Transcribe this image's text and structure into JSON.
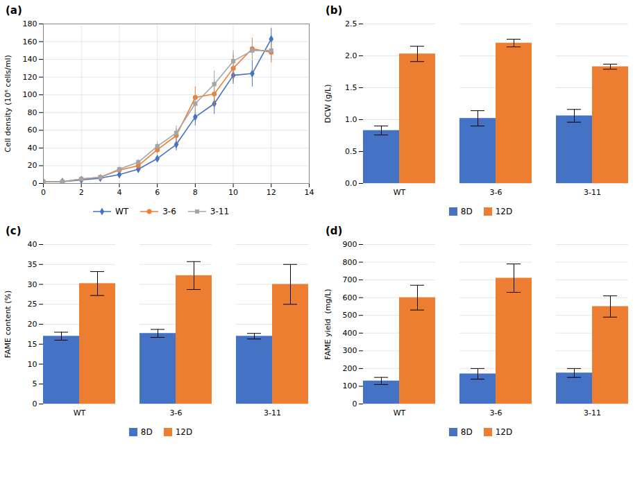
{
  "chart_data": [
    {
      "type": "line",
      "title": "(a)",
      "x": [
        0,
        1,
        2,
        3,
        4,
        5,
        6,
        7,
        8,
        9,
        10,
        11,
        12
      ],
      "series": [
        {
          "name": "WT",
          "color": "#4472C4",
          "marker": "diamond",
          "values": [
            2,
            2,
            4,
            6,
            10,
            16,
            28,
            44,
            75,
            90,
            122,
            124,
            163
          ],
          "errors": [
            0,
            0,
            0.5,
            1,
            2,
            2,
            4,
            7,
            10,
            12,
            10,
            15,
            12
          ]
        },
        {
          "name": "3-6",
          "color": "#ED7D31",
          "marker": "circle",
          "values": [
            2,
            2,
            5,
            7,
            15,
            20,
            38,
            54,
            97,
            101,
            130,
            152,
            148
          ],
          "errors": [
            0,
            0,
            0.5,
            1,
            2,
            3,
            5,
            8,
            12,
            15,
            15,
            12,
            12
          ]
        },
        {
          "name": "3-11",
          "color": "#A5A5A5",
          "marker": "square",
          "values": [
            2,
            2,
            5,
            7,
            16,
            24,
            42,
            57,
            90,
            112,
            138,
            150,
            150
          ],
          "errors": [
            0,
            0,
            0.5,
            1,
            3,
            3,
            5,
            8,
            12,
            15,
            12,
            10,
            10
          ]
        }
      ],
      "xlim": [
        0,
        14
      ],
      "xticks": [
        0,
        2,
        4,
        6,
        8,
        10,
        12,
        14
      ],
      "ylim": [
        0,
        180
      ],
      "yticks": [
        0,
        20,
        40,
        60,
        80,
        100,
        120,
        140,
        160,
        180
      ],
      "ylabel": "Cell density (10⁶ cells/ml)",
      "grid": true,
      "legend": "bottom"
    },
    {
      "type": "bar",
      "title": "(b)",
      "categories": [
        "WT",
        "3-6",
        "3-11"
      ],
      "series": [
        {
          "name": "8D",
          "color": "#4472C4",
          "values": [
            0.83,
            1.02,
            1.06
          ],
          "errors": [
            0.07,
            0.12,
            0.1
          ]
        },
        {
          "name": "12D",
          "color": "#ED7D31",
          "values": [
            2.03,
            2.2,
            1.83
          ],
          "errors": [
            0.12,
            0.06,
            0.04
          ]
        }
      ],
      "ylim": [
        0,
        2.5
      ],
      "yticks": [
        {
          "value": 0,
          "label": "0.0"
        },
        0.5,
        {
          "value": 1.0,
          "label": "1.0"
        },
        1.5,
        {
          "value": 2.0,
          "label": "2.0"
        },
        2.5
      ],
      "ylabel": "DCW (g/L)",
      "grid": "y",
      "legend": "bottom"
    },
    {
      "type": "bar",
      "title": "(c)",
      "categories": [
        "WT",
        "3-6",
        "3-11"
      ],
      "series": [
        {
          "name": "8D",
          "color": "#4472C4",
          "values": [
            17.0,
            17.7,
            17.0
          ],
          "errors": [
            1.0,
            1.0,
            0.7
          ]
        },
        {
          "name": "12D",
          "color": "#ED7D31",
          "values": [
            30.2,
            32.2,
            30.0
          ],
          "errors": [
            3.0,
            3.5,
            5.0
          ]
        }
      ],
      "ylim": [
        0,
        40
      ],
      "yticks": [
        0,
        5,
        10,
        15,
        20,
        25,
        30,
        35,
        40
      ],
      "ylabel": "FAME content (%)",
      "grid": "y",
      "legend": "bottom"
    },
    {
      "type": "bar",
      "title": "(d)",
      "categories": [
        "WT",
        "3-6",
        "3-11"
      ],
      "series": [
        {
          "name": "8D",
          "color": "#4472C4",
          "values": [
            130,
            170,
            175
          ],
          "errors": [
            20,
            30,
            25
          ]
        },
        {
          "name": "12D",
          "color": "#ED7D31",
          "values": [
            600,
            710,
            550
          ],
          "errors": [
            70,
            80,
            60
          ]
        }
      ],
      "ylim": [
        0,
        900
      ],
      "yticks": [
        0,
        100,
        200,
        300,
        400,
        500,
        600,
        700,
        800,
        900
      ],
      "ylabel": "FAME yield  (mg/L)",
      "grid": "y",
      "legend": "bottom"
    }
  ]
}
